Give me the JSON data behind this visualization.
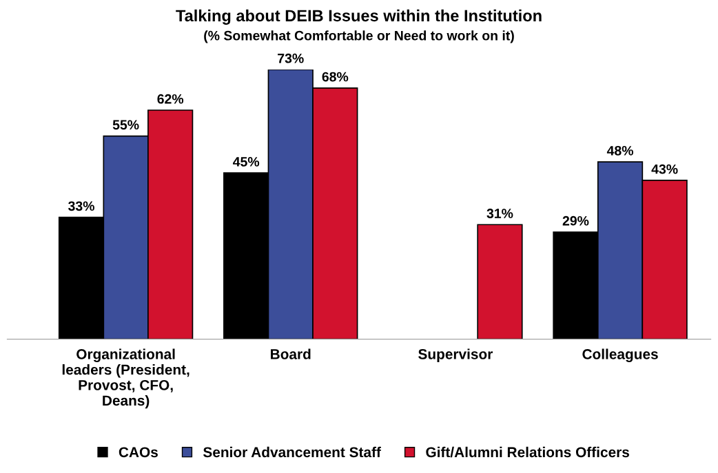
{
  "chart_data": {
    "type": "bar",
    "title": "Talking about DEIB Issues within the Institution",
    "subtitle": "(% Somewhat Comfortable or Need to work on it)",
    "categories": [
      "Organizational\nleaders (President,\nProvost, CFO,\nDeans)",
      "Board",
      "Supervisor",
      "Colleagues"
    ],
    "series": [
      {
        "name": "CAOs",
        "color": "#000000",
        "values": [
          33,
          45,
          null,
          29
        ],
        "value_labels": [
          "33%",
          "45%",
          null,
          "29%"
        ]
      },
      {
        "name": "Senior Advancement Staff",
        "color": "#3c4e9a",
        "values": [
          55,
          73,
          null,
          48
        ],
        "value_labels": [
          "55%",
          "73%",
          null,
          "48%"
        ]
      },
      {
        "name": "Gift/Alumni Relations Officers",
        "color": "#d2122e",
        "values": [
          62,
          68,
          31,
          43
        ],
        "value_labels": [
          "62%",
          "68%",
          "31%",
          "43%"
        ]
      }
    ],
    "legend": "bottom",
    "grid": false
  }
}
